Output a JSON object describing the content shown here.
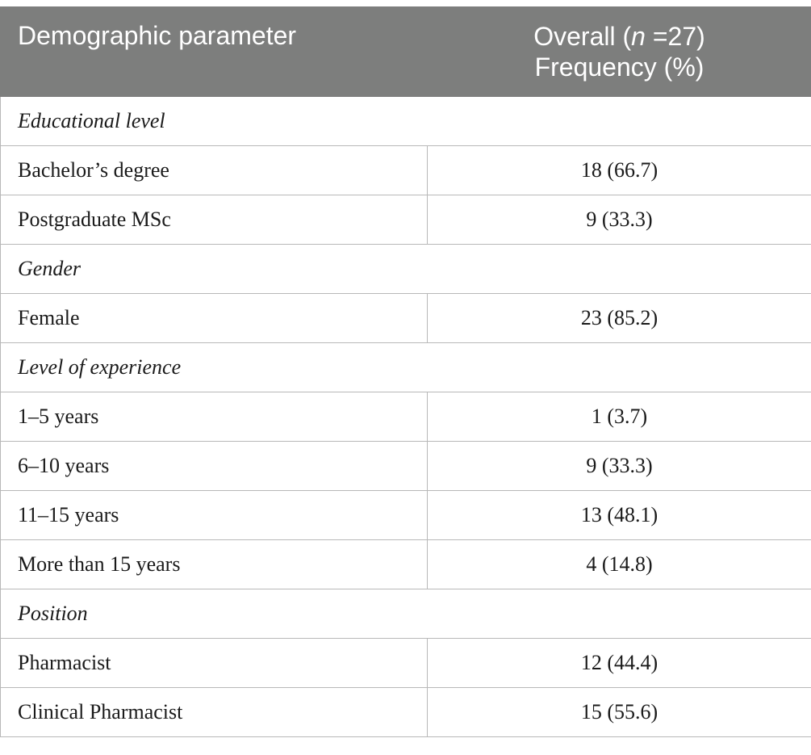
{
  "header": {
    "col1": "Demographic parameter",
    "col2_line1_pre": "Overall (",
    "col2_line1_n": "n",
    "col2_line1_post": " =27)",
    "col2_line2": "Frequency (%)"
  },
  "sections": [
    {
      "title": "Educational level",
      "rows": [
        {
          "label": "Bachelor’s degree",
          "value": "18 (66.7)"
        },
        {
          "label": "Postgraduate MSc",
          "value": "9 (33.3)"
        }
      ]
    },
    {
      "title": "Gender",
      "rows": [
        {
          "label": "Female",
          "value": "23 (85.2)"
        }
      ]
    },
    {
      "title": "Level of experience",
      "rows": [
        {
          "label": "1–5 years",
          "value": "1 (3.7)"
        },
        {
          "label": "6–10 years",
          "value": "9 (33.3)"
        },
        {
          "label": "11–15 years",
          "value": "13 (48.1)"
        },
        {
          "label": "More than 15 years",
          "value": "4 (14.8)"
        }
      ]
    },
    {
      "title": "Position",
      "rows": [
        {
          "label": "Pharmacist",
          "value": "12 (44.4)"
        },
        {
          "label": "Clinical Pharmacist",
          "value": "15 (55.6)"
        }
      ]
    }
  ]
}
